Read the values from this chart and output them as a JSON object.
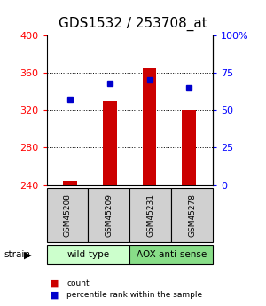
{
  "title": "GDS1532 / 253708_at",
  "samples": [
    "GSM45208",
    "GSM45209",
    "GSM45231",
    "GSM45278"
  ],
  "bar_base": 240,
  "bar_tops": [
    244,
    330,
    365,
    320
  ],
  "percentile_values": [
    57,
    68,
    70,
    65
  ],
  "ylim_left": [
    240,
    400
  ],
  "ylim_right": [
    0,
    100
  ],
  "yticks_left": [
    240,
    280,
    320,
    360,
    400
  ],
  "yticks_right": [
    0,
    25,
    50,
    75,
    100
  ],
  "yticklabels_right": [
    "0",
    "25",
    "50",
    "75",
    "100%"
  ],
  "bar_color": "#cc0000",
  "percentile_color": "#0000cc",
  "strain_groups": [
    {
      "label": "wild-type",
      "indices": [
        0,
        1
      ],
      "color": "#ccffcc"
    },
    {
      "label": "AOX anti-sense",
      "indices": [
        2,
        3
      ],
      "color": "#88dd88"
    }
  ],
  "strain_label": "strain",
  "legend_count_label": "count",
  "legend_percentile_label": "percentile rank within the sample",
  "bar_width": 0.35,
  "title_fontsize": 11,
  "tick_fontsize": 8
}
